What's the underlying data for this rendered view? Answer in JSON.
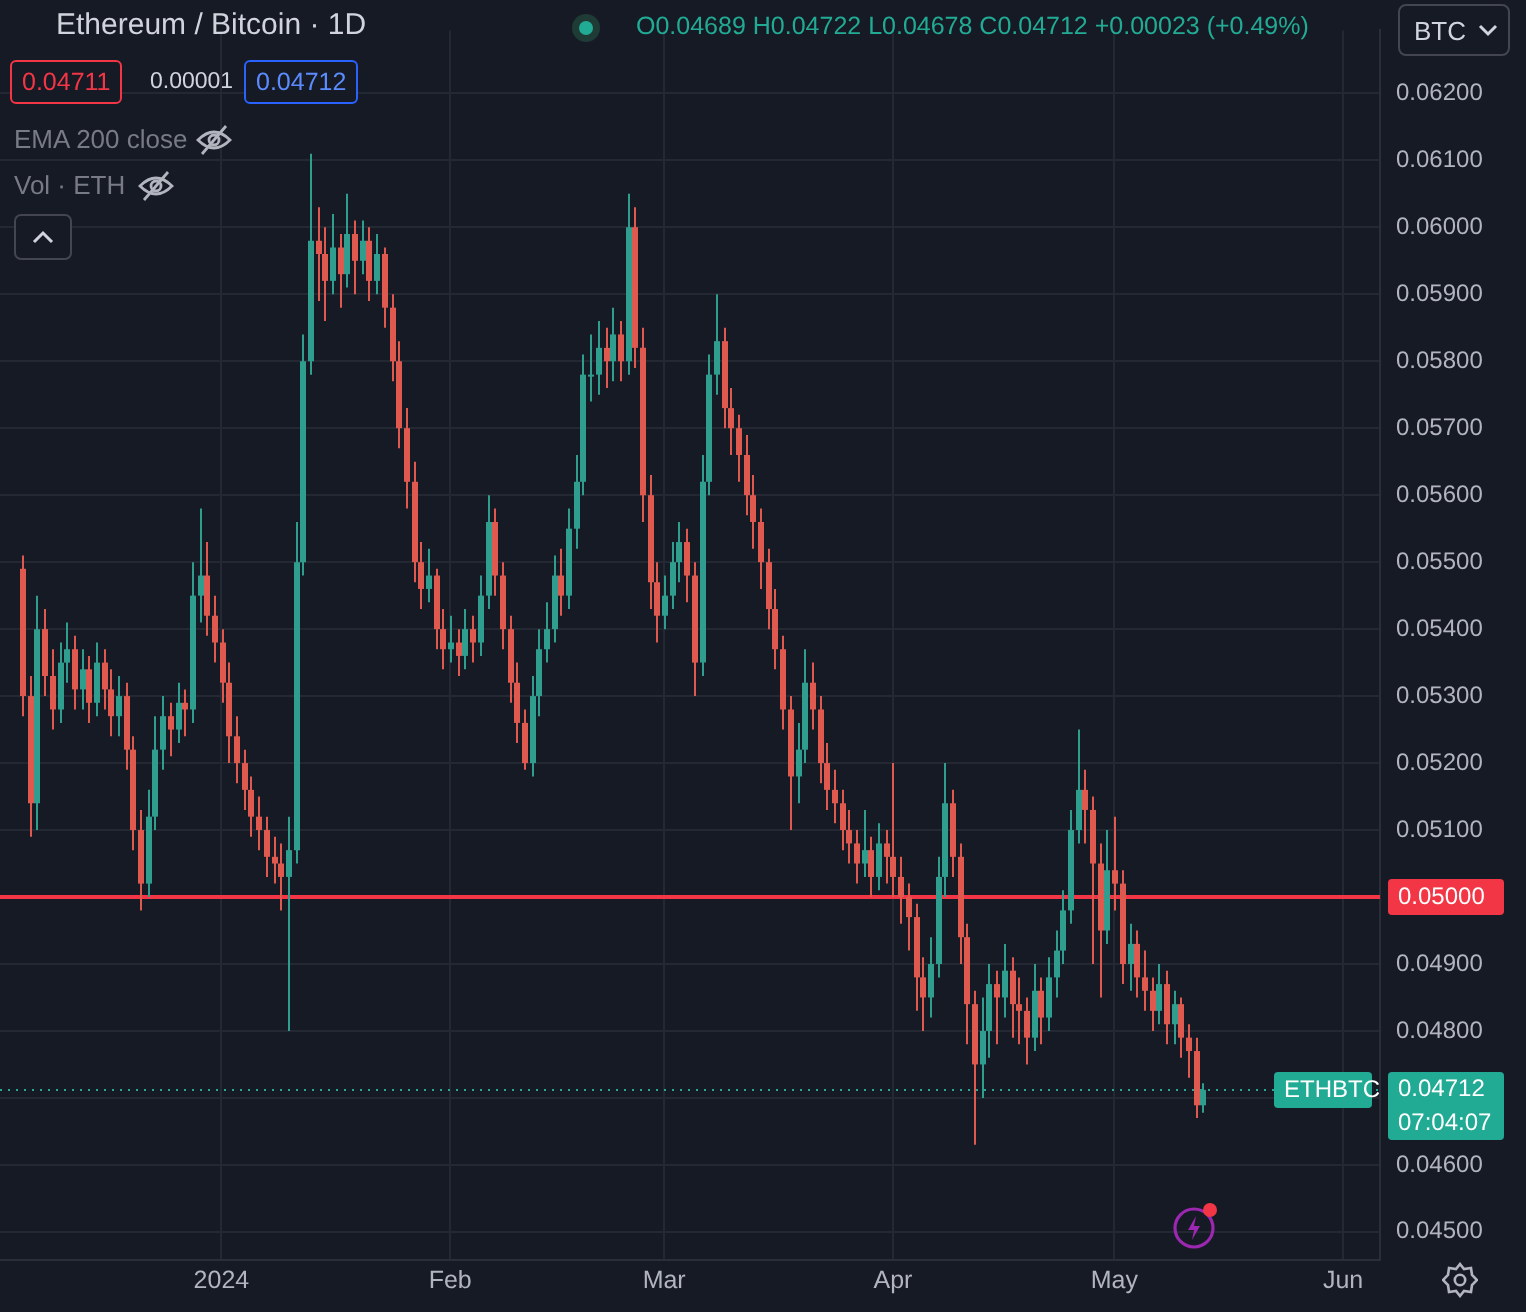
{
  "chart_data": {
    "type": "candlestick",
    "title": "Ethereum / Bitcoin · 1D",
    "annotations": [
      "O0.04689 H0.04722 L0.04678 C0.04712 +0.00023 (+0.49%)",
      "0.04711",
      "0.00001",
      "0.04712",
      "EMA 200 close",
      "Vol · ETH",
      "BTC",
      "ETHBTC",
      "07:04:07"
    ],
    "x": [
      "2023-12-05",
      "2023-12-06",
      "2023-12-07",
      "2023-12-08",
      "2023-12-09",
      "2023-12-10",
      "2023-12-11",
      "2023-12-12",
      "2023-12-13",
      "2023-12-14",
      "2023-12-15",
      "2023-12-16",
      "2023-12-17",
      "2023-12-18",
      "2023-12-19",
      "2023-12-20",
      "2023-12-21",
      "2023-12-22",
      "2023-12-23",
      "2023-12-24",
      "2023-12-25",
      "2023-12-26",
      "2023-12-27",
      "2023-12-28",
      "2023-12-29",
      "2023-12-30",
      "2023-12-31",
      "2024-01-01",
      "2024-01-02",
      "2024-01-03",
      "2024-01-04",
      "2024-01-05",
      "2024-01-06",
      "2024-01-07",
      "2024-01-08",
      "2024-01-09",
      "2024-01-10",
      "2024-01-11",
      "2024-01-12",
      "2024-01-13",
      "2024-01-14",
      "2024-01-15",
      "2024-01-16",
      "2024-01-17",
      "2024-01-18",
      "2024-01-19",
      "2024-01-20",
      "2024-01-21",
      "2024-01-22",
      "2024-01-23",
      "2024-01-24",
      "2024-01-25",
      "2024-01-26",
      "2024-01-27",
      "2024-01-28",
      "2024-01-29",
      "2024-01-30",
      "2024-01-31",
      "2024-02-01",
      "2024-02-02",
      "2024-02-03",
      "2024-02-04",
      "2024-02-05",
      "2024-02-06",
      "2024-02-07",
      "2024-02-08",
      "2024-02-09",
      "2024-02-10",
      "2024-02-11",
      "2024-02-12",
      "2024-02-13",
      "2024-02-14",
      "2024-02-15",
      "2024-02-16",
      "2024-02-17",
      "2024-02-18",
      "2024-02-19",
      "2024-02-20",
      "2024-02-21",
      "2024-02-22",
      "2024-02-23",
      "2024-02-24",
      "2024-02-25",
      "2024-02-26",
      "2024-02-27",
      "2024-02-28",
      "2024-02-29",
      "2024-03-01",
      "2024-03-02",
      "2024-03-03",
      "2024-03-04",
      "2024-03-05",
      "2024-03-06",
      "2024-03-07",
      "2024-03-08",
      "2024-03-09",
      "2024-03-10",
      "2024-03-11",
      "2024-03-12",
      "2024-03-13",
      "2024-03-14",
      "2024-03-15",
      "2024-03-16",
      "2024-03-17",
      "2024-03-18",
      "2024-03-19",
      "2024-03-20",
      "2024-03-21",
      "2024-03-22",
      "2024-03-23",
      "2024-03-24",
      "2024-03-25",
      "2024-03-26",
      "2024-03-27",
      "2024-03-28",
      "2024-03-29",
      "2024-03-30",
      "2024-03-31",
      "2024-04-01",
      "2024-04-02",
      "2024-04-03",
      "2024-04-04",
      "2024-04-05",
      "2024-04-06",
      "2024-04-07",
      "2024-04-08",
      "2024-04-09",
      "2024-04-10",
      "2024-04-11",
      "2024-04-12",
      "2024-04-13",
      "2024-04-14",
      "2024-04-15",
      "2024-04-16",
      "2024-04-17",
      "2024-04-18",
      "2024-04-19",
      "2024-04-20",
      "2024-04-21",
      "2024-04-22",
      "2024-04-23",
      "2024-04-24",
      "2024-04-25",
      "2024-04-26",
      "2024-04-27",
      "2024-04-28",
      "2024-04-29",
      "2024-04-30",
      "2024-05-01",
      "2024-05-02",
      "2024-05-03",
      "2024-05-04",
      "2024-05-05",
      "2024-05-06",
      "2024-05-07",
      "2024-05-08",
      "2024-05-09",
      "2024-05-10",
      "2024-05-11",
      "2024-05-12",
      "2024-05-13"
    ],
    "ohlc": [
      [
        0.0549,
        0.0551,
        0.0527,
        0.053
      ],
      [
        0.053,
        0.0533,
        0.0509,
        0.0514
      ],
      [
        0.0514,
        0.0545,
        0.051,
        0.054
      ],
      [
        0.054,
        0.0543,
        0.053,
        0.0533
      ],
      [
        0.0533,
        0.0537,
        0.0525,
        0.0528
      ],
      [
        0.0528,
        0.0538,
        0.0526,
        0.0535
      ],
      [
        0.0535,
        0.0541,
        0.0532,
        0.0537
      ],
      [
        0.0537,
        0.0539,
        0.0528,
        0.0531
      ],
      [
        0.0531,
        0.0537,
        0.0528,
        0.0534
      ],
      [
        0.0534,
        0.0536,
        0.0526,
        0.0529
      ],
      [
        0.0529,
        0.0538,
        0.0527,
        0.0535
      ],
      [
        0.0535,
        0.0537,
        0.0528,
        0.0531
      ],
      [
        0.0531,
        0.0534,
        0.0524,
        0.0527
      ],
      [
        0.0527,
        0.0533,
        0.0524,
        0.053
      ],
      [
        0.053,
        0.0532,
        0.0519,
        0.0522
      ],
      [
        0.0522,
        0.0524,
        0.0507,
        0.051
      ],
      [
        0.051,
        0.0513,
        0.0498,
        0.0502
      ],
      [
        0.0502,
        0.0516,
        0.05,
        0.0512
      ],
      [
        0.0512,
        0.0527,
        0.051,
        0.0522
      ],
      [
        0.0522,
        0.053,
        0.0519,
        0.0527
      ],
      [
        0.0527,
        0.0529,
        0.0521,
        0.0525
      ],
      [
        0.0525,
        0.0532,
        0.0523,
        0.0529
      ],
      [
        0.0529,
        0.0531,
        0.0524,
        0.0528
      ],
      [
        0.0528,
        0.055,
        0.0526,
        0.0545
      ],
      [
        0.0545,
        0.0558,
        0.0541,
        0.0548
      ],
      [
        0.0548,
        0.0553,
        0.0539,
        0.0542
      ],
      [
        0.0542,
        0.0545,
        0.0535,
        0.0538
      ],
      [
        0.0538,
        0.054,
        0.0529,
        0.0532
      ],
      [
        0.0532,
        0.0535,
        0.052,
        0.0524
      ],
      [
        0.0524,
        0.0527,
        0.0517,
        0.052
      ],
      [
        0.052,
        0.0522,
        0.0513,
        0.0516
      ],
      [
        0.0516,
        0.0518,
        0.0509,
        0.0512
      ],
      [
        0.0512,
        0.0515,
        0.0507,
        0.051
      ],
      [
        0.051,
        0.0512,
        0.0503,
        0.0506
      ],
      [
        0.0506,
        0.0509,
        0.0502,
        0.0505
      ],
      [
        0.0505,
        0.0508,
        0.0498,
        0.0503
      ],
      [
        0.0503,
        0.0512,
        0.048,
        0.0507
      ],
      [
        0.0507,
        0.0556,
        0.0505,
        0.055
      ],
      [
        0.055,
        0.0584,
        0.0548,
        0.058
      ],
      [
        0.058,
        0.0611,
        0.0578,
        0.0598
      ],
      [
        0.0598,
        0.0603,
        0.0589,
        0.0596
      ],
      [
        0.0596,
        0.06,
        0.0586,
        0.0592
      ],
      [
        0.0592,
        0.0602,
        0.059,
        0.0597
      ],
      [
        0.0597,
        0.0599,
        0.0588,
        0.0593
      ],
      [
        0.0593,
        0.0605,
        0.0591,
        0.0599
      ],
      [
        0.0599,
        0.0601,
        0.059,
        0.0595
      ],
      [
        0.0595,
        0.0601,
        0.0593,
        0.0598
      ],
      [
        0.0598,
        0.06,
        0.0589,
        0.0592
      ],
      [
        0.0592,
        0.0599,
        0.059,
        0.0596
      ],
      [
        0.0596,
        0.0597,
        0.0585,
        0.0588
      ],
      [
        0.0588,
        0.059,
        0.0577,
        0.058
      ],
      [
        0.058,
        0.0583,
        0.0567,
        0.057
      ],
      [
        0.057,
        0.0573,
        0.0558,
        0.0562
      ],
      [
        0.0562,
        0.0565,
        0.0547,
        0.055
      ],
      [
        0.055,
        0.0553,
        0.0543,
        0.0546
      ],
      [
        0.0546,
        0.0552,
        0.0544,
        0.0548
      ],
      [
        0.0548,
        0.0549,
        0.0537,
        0.054
      ],
      [
        0.054,
        0.0543,
        0.0534,
        0.0537
      ],
      [
        0.0537,
        0.0542,
        0.0535,
        0.0538
      ],
      [
        0.0538,
        0.054,
        0.0533,
        0.0536
      ],
      [
        0.0536,
        0.0543,
        0.0534,
        0.054
      ],
      [
        0.054,
        0.0542,
        0.0535,
        0.0538
      ],
      [
        0.0538,
        0.0548,
        0.0536,
        0.0545
      ],
      [
        0.0545,
        0.056,
        0.0543,
        0.0556
      ],
      [
        0.0556,
        0.0558,
        0.0545,
        0.0548
      ],
      [
        0.0548,
        0.055,
        0.0537,
        0.054
      ],
      [
        0.054,
        0.0542,
        0.0529,
        0.0532
      ],
      [
        0.0532,
        0.0535,
        0.0523,
        0.0526
      ],
      [
        0.0526,
        0.0528,
        0.0519,
        0.052
      ],
      [
        0.052,
        0.0533,
        0.0518,
        0.053
      ],
      [
        0.053,
        0.054,
        0.0527,
        0.0537
      ],
      [
        0.0537,
        0.0544,
        0.0535,
        0.054
      ],
      [
        0.054,
        0.0551,
        0.0538,
        0.0548
      ],
      [
        0.0548,
        0.0552,
        0.0542,
        0.0545
      ],
      [
        0.0545,
        0.0558,
        0.0543,
        0.0555
      ],
      [
        0.0555,
        0.0566,
        0.0552,
        0.0562
      ],
      [
        0.0562,
        0.0581,
        0.056,
        0.0578
      ],
      [
        0.0578,
        0.0584,
        0.0574,
        0.0578
      ],
      [
        0.0578,
        0.0586,
        0.0575,
        0.0582
      ],
      [
        0.0582,
        0.0585,
        0.0576,
        0.058
      ],
      [
        0.058,
        0.0588,
        0.0577,
        0.0584
      ],
      [
        0.0584,
        0.0586,
        0.0577,
        0.058
      ],
      [
        0.058,
        0.0605,
        0.0578,
        0.06
      ],
      [
        0.06,
        0.0603,
        0.0579,
        0.0582
      ],
      [
        0.0582,
        0.0585,
        0.0556,
        0.056
      ],
      [
        0.056,
        0.0563,
        0.0543,
        0.0547
      ],
      [
        0.0547,
        0.055,
        0.0538,
        0.0542
      ],
      [
        0.0542,
        0.0548,
        0.054,
        0.0545
      ],
      [
        0.0545,
        0.0553,
        0.0543,
        0.055
      ],
      [
        0.055,
        0.0556,
        0.0547,
        0.0553
      ],
      [
        0.0553,
        0.0555,
        0.0544,
        0.0548
      ],
      [
        0.0548,
        0.055,
        0.053,
        0.0535
      ],
      [
        0.0535,
        0.0566,
        0.0533,
        0.0562
      ],
      [
        0.0562,
        0.0581,
        0.056,
        0.0578
      ],
      [
        0.0578,
        0.059,
        0.0575,
        0.0583
      ],
      [
        0.0583,
        0.0585,
        0.057,
        0.0573
      ],
      [
        0.0573,
        0.0576,
        0.0566,
        0.057
      ],
      [
        0.057,
        0.0572,
        0.0562,
        0.0566
      ],
      [
        0.0566,
        0.0569,
        0.0557,
        0.056
      ],
      [
        0.056,
        0.0563,
        0.0552,
        0.0556
      ],
      [
        0.0556,
        0.0558,
        0.0546,
        0.055
      ],
      [
        0.055,
        0.0552,
        0.054,
        0.0543
      ],
      [
        0.0543,
        0.0546,
        0.0534,
        0.0537
      ],
      [
        0.0537,
        0.0539,
        0.0525,
        0.0528
      ],
      [
        0.0528,
        0.053,
        0.051,
        0.0518
      ],
      [
        0.0518,
        0.0526,
        0.0514,
        0.0522
      ],
      [
        0.0522,
        0.0537,
        0.052,
        0.0532
      ],
      [
        0.0532,
        0.0535,
        0.0525,
        0.0528
      ],
      [
        0.0528,
        0.053,
        0.0517,
        0.052
      ],
      [
        0.052,
        0.0523,
        0.0513,
        0.0516
      ],
      [
        0.0516,
        0.0519,
        0.0511,
        0.0514
      ],
      [
        0.0514,
        0.0516,
        0.0507,
        0.051
      ],
      [
        0.051,
        0.0513,
        0.0505,
        0.0508
      ],
      [
        0.0508,
        0.051,
        0.0502,
        0.0505
      ],
      [
        0.0505,
        0.0513,
        0.0503,
        0.0507
      ],
      [
        0.0507,
        0.0509,
        0.05,
        0.0503
      ],
      [
        0.0503,
        0.0511,
        0.0501,
        0.0508
      ],
      [
        0.0508,
        0.051,
        0.0502,
        0.0506
      ],
      [
        0.0506,
        0.052,
        0.05,
        0.0503
      ],
      [
        0.0503,
        0.0506,
        0.0496,
        0.05
      ],
      [
        0.05,
        0.0502,
        0.0492,
        0.0497
      ],
      [
        0.0497,
        0.0499,
        0.0483,
        0.0488
      ],
      [
        0.0488,
        0.0491,
        0.048,
        0.0485
      ],
      [
        0.0485,
        0.0494,
        0.0482,
        0.049
      ],
      [
        0.049,
        0.0506,
        0.0488,
        0.0503
      ],
      [
        0.0503,
        0.052,
        0.05,
        0.0514
      ],
      [
        0.0514,
        0.0516,
        0.0503,
        0.0506
      ],
      [
        0.0506,
        0.0508,
        0.049,
        0.0494
      ],
      [
        0.0494,
        0.0496,
        0.0478,
        0.0484
      ],
      [
        0.0484,
        0.0486,
        0.0463,
        0.0475
      ],
      [
        0.0475,
        0.0485,
        0.047,
        0.048
      ],
      [
        0.048,
        0.049,
        0.0476,
        0.0487
      ],
      [
        0.0487,
        0.0489,
        0.0478,
        0.0485
      ],
      [
        0.0485,
        0.0493,
        0.0482,
        0.0489
      ],
      [
        0.0489,
        0.0491,
        0.0479,
        0.0484
      ],
      [
        0.0484,
        0.0488,
        0.0478,
        0.0483
      ],
      [
        0.0483,
        0.0485,
        0.0475,
        0.0479
      ],
      [
        0.0479,
        0.049,
        0.0477,
        0.0486
      ],
      [
        0.0486,
        0.0488,
        0.0478,
        0.0482
      ],
      [
        0.0482,
        0.0491,
        0.048,
        0.0488
      ],
      [
        0.0488,
        0.0495,
        0.0485,
        0.0492
      ],
      [
        0.0492,
        0.0501,
        0.049,
        0.0498
      ],
      [
        0.0498,
        0.0513,
        0.0496,
        0.051
      ],
      [
        0.051,
        0.0525,
        0.0508,
        0.0516
      ],
      [
        0.0516,
        0.0519,
        0.0508,
        0.0513
      ],
      [
        0.0513,
        0.0515,
        0.049,
        0.0505
      ],
      [
        0.0505,
        0.0508,
        0.0485,
        0.0495
      ],
      [
        0.0495,
        0.051,
        0.0493,
        0.0504
      ],
      [
        0.0504,
        0.0512,
        0.0498,
        0.0502
      ],
      [
        0.0502,
        0.0504,
        0.0487,
        0.049
      ],
      [
        0.049,
        0.0496,
        0.0486,
        0.0493
      ],
      [
        0.0493,
        0.0495,
        0.0485,
        0.0488
      ],
      [
        0.0488,
        0.0492,
        0.0483,
        0.0486
      ],
      [
        0.0486,
        0.0488,
        0.048,
        0.0483
      ],
      [
        0.0483,
        0.049,
        0.0481,
        0.0487
      ],
      [
        0.0487,
        0.0489,
        0.0478,
        0.0481
      ],
      [
        0.0481,
        0.0486,
        0.0478,
        0.0484
      ],
      [
        0.0484,
        0.0485,
        0.0476,
        0.0479
      ],
      [
        0.0479,
        0.0481,
        0.0473,
        0.0477
      ],
      [
        0.0477,
        0.0479,
        0.0467,
        0.04689
      ],
      [
        0.04689,
        0.04722,
        0.04678,
        0.04712
      ]
    ],
    "xlim": [
      "2023-12-02",
      "2024-06-06"
    ],
    "xticks": [
      {
        "value": "2024-01-01",
        "label": "2024"
      },
      {
        "value": "2024-02-01",
        "label": "Feb"
      },
      {
        "value": "2024-03-01",
        "label": "Mar"
      },
      {
        "value": "2024-04-01",
        "label": "Apr"
      },
      {
        "value": "2024-05-01",
        "label": "May"
      },
      {
        "value": "2024-06-01",
        "label": "Jun"
      }
    ],
    "ylim": [
      0.04458,
      0.06294
    ],
    "yticks": [
      {
        "value": 0.045,
        "label": "0.04500"
      },
      {
        "value": 0.046,
        "label": "0.04600"
      },
      {
        "value": 0.047,
        "label": null
      },
      {
        "value": 0.048,
        "label": "0.04800"
      },
      {
        "value": 0.049,
        "label": "0.04900"
      },
      {
        "value": 0.05,
        "label": "0.05000"
      },
      {
        "value": 0.051,
        "label": "0.05100"
      },
      {
        "value": 0.052,
        "label": "0.05200"
      },
      {
        "value": 0.053,
        "label": "0.05300"
      },
      {
        "value": 0.054,
        "label": "0.05400"
      },
      {
        "value": 0.055,
        "label": "0.05500"
      },
      {
        "value": 0.056,
        "label": "0.05600"
      },
      {
        "value": 0.057,
        "label": "0.05700"
      },
      {
        "value": 0.058,
        "label": "0.05800"
      },
      {
        "value": 0.059,
        "label": "0.05900"
      },
      {
        "value": 0.06,
        "label": "0.06000"
      },
      {
        "value": 0.061,
        "label": "0.06100"
      },
      {
        "value": 0.062,
        "label": "0.06200"
      }
    ],
    "ref_lines": [
      {
        "axis": "y",
        "value": 0.05,
        "label": "0.05000",
        "color": "#f23645",
        "line_style": "solid"
      },
      {
        "axis": "y",
        "value": 0.04712,
        "label": "0.04712",
        "color": "#22ab94",
        "line_style": "dotted"
      }
    ],
    "grid": true
  }
}
